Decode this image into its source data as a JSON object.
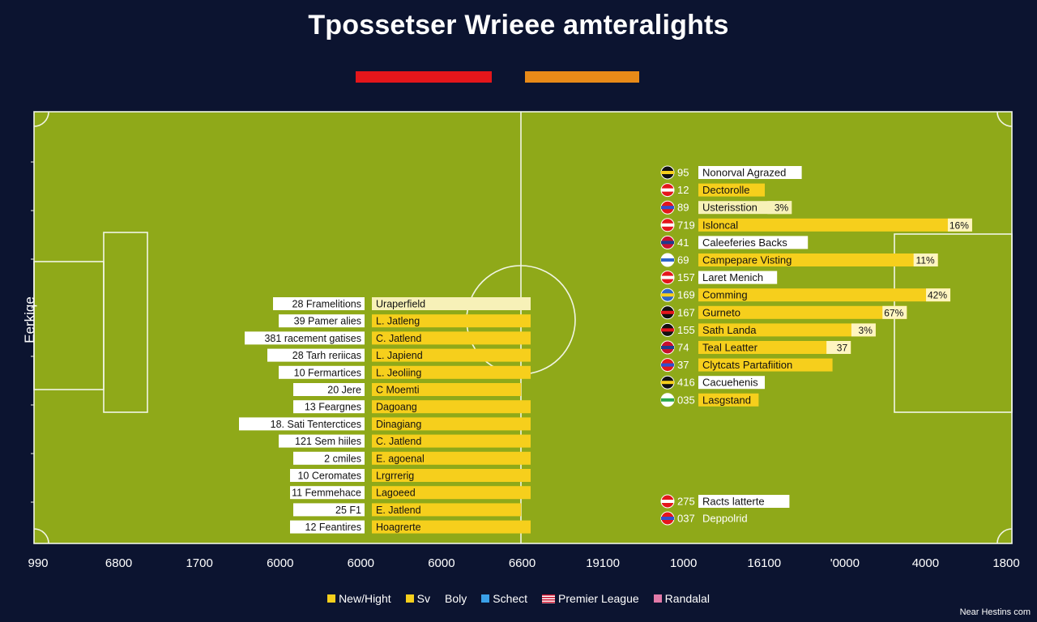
{
  "title": "Tpossetser Wrieee amteralights",
  "accent_colors": {
    "red": "#e4161b",
    "orange": "#e88a18"
  },
  "colors": {
    "pitch": "#8fa919",
    "pitch_lines": "#f1f5e4",
    "bar": "#f6cf1c",
    "bar_light": "#f7f1b8",
    "background": "#0c1430"
  },
  "chart_data": {
    "type": "bar",
    "title": "Tpossetser Wrieee amteralights",
    "ylabel": "Eerkiqe",
    "x_ticks": [
      "990",
      "6800",
      "1700",
      "6000",
      "6000",
      "6000",
      "6600",
      "19100",
      "1000",
      "16100",
      "'0000",
      "4000",
      "1800"
    ],
    "left_series": {
      "rows": [
        {
          "label": "28 Framelitions",
          "name": "Uraperfield",
          "value": 1.0,
          "light": true
        },
        {
          "label": "39 Pamer alies",
          "name": "L. Jatleng",
          "value": 1.0
        },
        {
          "label": "381 racement gatises",
          "name": "C. Jatlend",
          "value": 1.0
        },
        {
          "label": "28 Tarh reriicas",
          "name": "L. Japiend",
          "value": 1.0
        },
        {
          "label": "10 Fermartices",
          "name": "L. Jeoliing",
          "value": 1.0
        },
        {
          "label": "20 Jere",
          "name": "C Moemti",
          "value": 0.94
        },
        {
          "label": "13 Feargnes",
          "name": "Dagoang",
          "value": 1.0
        },
        {
          "label": "18. Sati Tenterctices",
          "name": "Dinagiang",
          "value": 1.0
        },
        {
          "label": "121 Sem hiiles",
          "name": "C. Jatlend",
          "value": 1.0
        },
        {
          "label": "2 cmiles",
          "name": "E. agoenal",
          "value": 1.0
        },
        {
          "label": "10 Ceromates",
          "name": "Lrgrrerig",
          "value": 1.0
        },
        {
          "label": "11 Femmehace",
          "name": "Lagoeed",
          "value": 1.0
        },
        {
          "label": "25 F1",
          "name": "E. Jatlend",
          "value": 0.94
        },
        {
          "label": "12 Feantires",
          "name": "Hoagrerte",
          "value": 1.0
        }
      ]
    },
    "right_series": {
      "rows": [
        {
          "flag": "badge-icon",
          "num": "95",
          "name": "Nonorval Agrazed",
          "value": 0.0,
          "pct": ""
        },
        {
          "flag": "flag-icon",
          "num": "12",
          "name": "Dectorolle",
          "value": 0.0,
          "pct": ""
        },
        {
          "flag": "flag-icon",
          "num": "89",
          "name": "Usterisstion",
          "value": 0.3,
          "pct": "3%"
        },
        {
          "flag": "flag-icon",
          "num": "719",
          "name": "Isloncal",
          "value": 0.88,
          "pct": "16%"
        },
        {
          "flag": "flag-icon",
          "num": "41",
          "name": "Caleeferies Backs",
          "value": 0.0,
          "pct": ""
        },
        {
          "flag": "flag-icon",
          "num": "69",
          "name": "Campepare Visting",
          "value": 0.77,
          "pct": "11%"
        },
        {
          "flag": "flag-icon",
          "num": "157",
          "name": "Laret Menich",
          "value": 0.0,
          "pct": ""
        },
        {
          "flag": "flag-icon",
          "num": "169",
          "name": "Comming",
          "value": 0.81,
          "pct": "42%"
        },
        {
          "flag": "flag-icon",
          "num": "167",
          "name": "Gurneto",
          "value": 0.67,
          "pct": "67%"
        },
        {
          "flag": "flag-icon",
          "num": "155",
          "name": "Sath Landa",
          "value": 0.57,
          "pct": "3%"
        },
        {
          "flag": "flag-icon",
          "num": "74",
          "name": "Teal Leatter",
          "value": 0.49,
          "pct": "37"
        },
        {
          "flag": "flag-icon",
          "num": "37",
          "name": "Clytcats Partafiition",
          "value": 0.0,
          "pct": ""
        },
        {
          "flag": "flag-icon",
          "num": "416",
          "name": "Cacuehenis",
          "value": 0.0,
          "pct": ""
        },
        {
          "flag": "flag-icon",
          "num": "035",
          "name": "Lasgstand",
          "value": 0.0,
          "pct": ""
        }
      ],
      "bottom_rows": [
        {
          "flag": "flag-icon",
          "num": "275",
          "name": "Racts latterte"
        },
        {
          "flag": "flag-icon",
          "num": "037",
          "name": "Deppolrid"
        }
      ]
    },
    "legend": [
      {
        "label": "New/Hight",
        "swatch": "#f6cf1c",
        "kind": "square"
      },
      {
        "label": "Sv",
        "swatch": "#f6cf1c",
        "kind": "square"
      },
      {
        "label": "Boly",
        "swatch": "",
        "kind": "none"
      },
      {
        "label": "Schect",
        "swatch": "#3aa0e8",
        "kind": "square"
      },
      {
        "label": "Premier League",
        "swatch": "flag",
        "kind": "flag"
      },
      {
        "label": "Randalal",
        "swatch": "#e27aa8",
        "kind": "square"
      }
    ]
  },
  "corner_note": "Near Hestins com"
}
